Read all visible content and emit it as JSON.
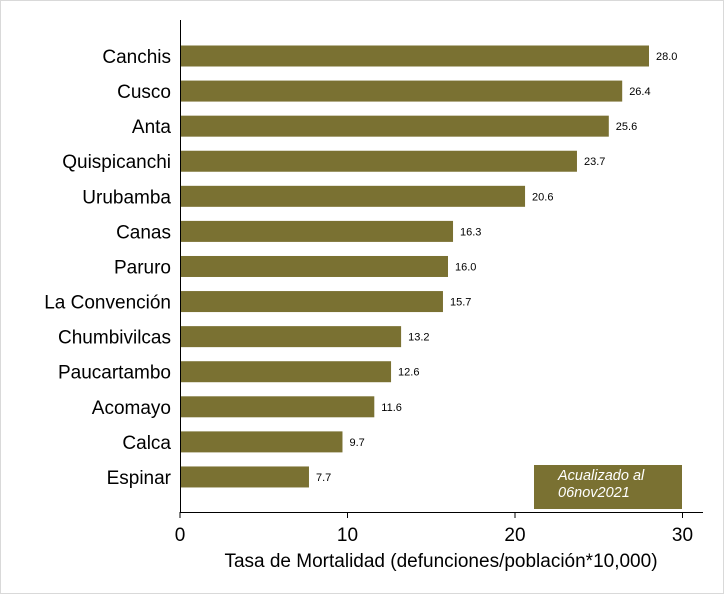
{
  "chart_data": {
    "type": "bar",
    "orientation": "horizontal",
    "categories": [
      "Canchis",
      "Cusco",
      "Anta",
      "Quispicanchi",
      "Urubamba",
      "Canas",
      "Paruro",
      "La Convención",
      "Chumbivilcas",
      "Paucartambo",
      "Acomayo",
      "Calca",
      "Espinar"
    ],
    "values": [
      28.0,
      26.4,
      25.6,
      23.7,
      20.6,
      16.3,
      16.0,
      15.7,
      13.2,
      12.6,
      11.6,
      9.7,
      7.7
    ],
    "value_labels": [
      "28.0",
      "26.4",
      "25.6",
      "23.7",
      "20.6",
      "16.3",
      "16.0",
      "15.7",
      "13.2",
      "12.6",
      "11.6",
      "9.7",
      "7.7"
    ],
    "xlabel": "Tasa de Mortalidad (defunciones/población*10,000)",
    "ylabel": "",
    "xlim": [
      0,
      31
    ],
    "xticks": [
      0,
      10,
      20,
      30
    ],
    "xtick_labels": [
      "0",
      "10",
      "20",
      "30"
    ],
    "grid": false,
    "bar_color": "#7a7132",
    "annotation": {
      "line1": "Acualizado al",
      "line2": "06nov2021",
      "background": "#7a7132",
      "text_color": "#ffffff"
    }
  }
}
